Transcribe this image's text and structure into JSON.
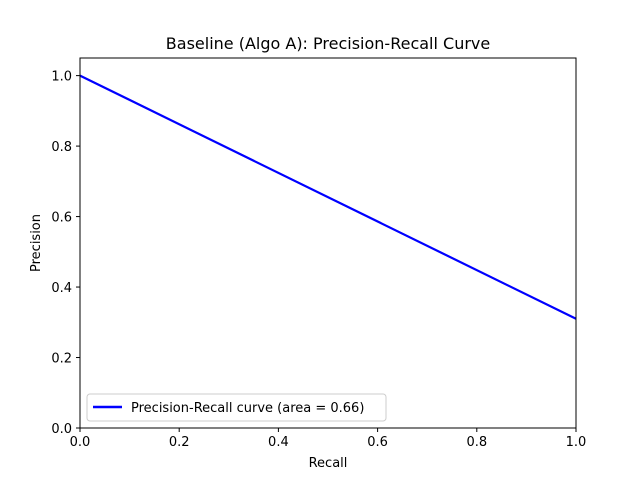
{
  "chart_data": {
    "type": "line",
    "title": "Baseline (Algo A): Precision-Recall Curve",
    "xlabel": "Recall",
    "ylabel": "Precision",
    "xlim": [
      0.0,
      1.0
    ],
    "ylim": [
      0.0,
      1.05
    ],
    "xticks": [
      0.0,
      0.2,
      0.4,
      0.6,
      0.8,
      1.0
    ],
    "yticks": [
      0.0,
      0.2,
      0.4,
      0.6,
      0.8,
      1.0
    ],
    "xtick_labels": [
      "0.0",
      "0.2",
      "0.4",
      "0.6",
      "0.8",
      "1.0"
    ],
    "ytick_labels": [
      "0.0",
      "0.2",
      "0.4",
      "0.6",
      "0.8",
      "1.0"
    ],
    "grid": false,
    "legend_position": "lower-left",
    "series": [
      {
        "name": "Precision-Recall curve (area = 0.66)",
        "color": "#0000ff",
        "x": [
          0.0,
          1.0
        ],
        "y": [
          1.0,
          0.31
        ]
      }
    ]
  }
}
